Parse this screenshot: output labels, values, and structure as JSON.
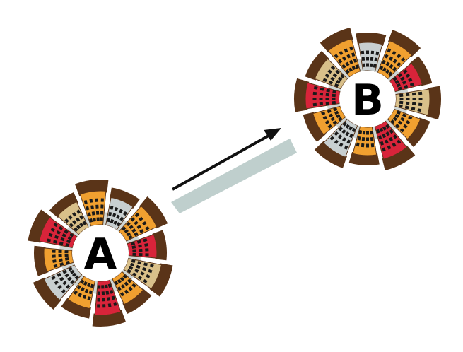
{
  "diagram": {
    "towns": [
      {
        "id": "town-a",
        "label": "A"
      },
      {
        "id": "town-b",
        "label": "B"
      }
    ],
    "connection": {
      "from": "A",
      "to": "B",
      "road_color": "#bfcfcd",
      "arrow_color": "#111111"
    },
    "palette": {
      "roof": "#5a3418",
      "building_orange": "#f0a030",
      "building_red": "#d8243a",
      "building_tan": "#d9c08a",
      "building_grey": "#c8cfd0",
      "window": "#1a1a1a",
      "center": "#ffffff",
      "street": "#cfd6d4"
    }
  }
}
